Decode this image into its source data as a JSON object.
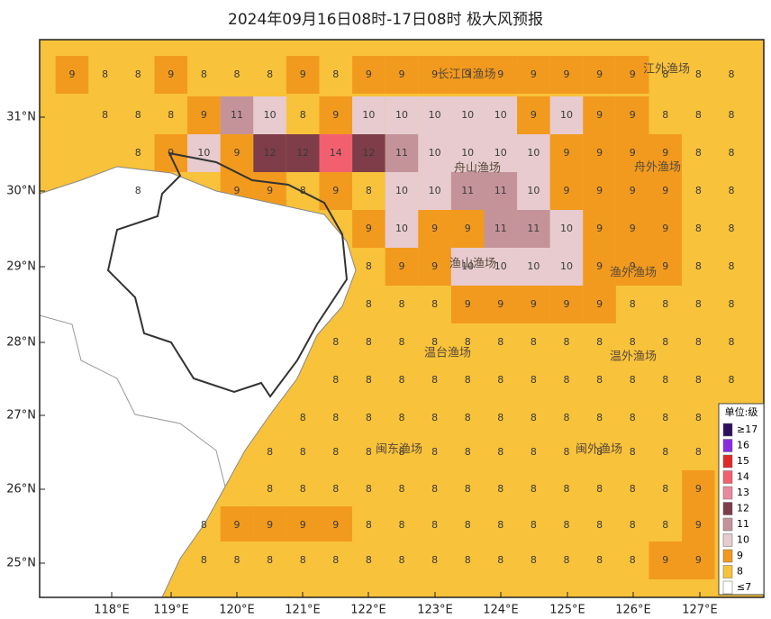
{
  "title": "2024年09月16日08时-17日08时 极大风预报",
  "map": {
    "lat_labels": [
      "31°N",
      "30°N",
      "29°N",
      "28°N",
      "27°N",
      "26°N",
      "25°N"
    ],
    "lon_labels": [
      "118°E",
      "119°E",
      "120°E",
      "121°E",
      "122°E",
      "123°E",
      "124°E",
      "125°E",
      "126°E",
      "127°E"
    ],
    "regions": [
      "长江口渔场",
      "江外渔场",
      "舟山渔场",
      "舟外渔场",
      "渔山渔场",
      "渔外渔场",
      "温台渔场",
      "温外渔场",
      "闽东渔场",
      "闽外渔场"
    ]
  },
  "grid": {
    "rows": [
      [
        9,
        8,
        8,
        9,
        8,
        8,
        8,
        9,
        8,
        9,
        9,
        9,
        9,
        9,
        9,
        9,
        9,
        9,
        8,
        8,
        8
      ],
      [
        null,
        8,
        8,
        8,
        9,
        11,
        10,
        8,
        9,
        10,
        10,
        10,
        10,
        10,
        9,
        10,
        9,
        9,
        8,
        8,
        8
      ],
      [
        null,
        null,
        8,
        9,
        10,
        9,
        12,
        12,
        14,
        12,
        11,
        10,
        10,
        10,
        10,
        9,
        9,
        9,
        9,
        8,
        8
      ],
      [
        null,
        null,
        8,
        null,
        null,
        9,
        9,
        8,
        9,
        8,
        10,
        10,
        11,
        11,
        10,
        9,
        9,
        9,
        9,
        8,
        8
      ],
      [
        null,
        null,
        null,
        null,
        null,
        null,
        null,
        null,
        null,
        9,
        10,
        9,
        9,
        11,
        11,
        10,
        9,
        9,
        9,
        8,
        8
      ],
      [
        null,
        null,
        null,
        null,
        null,
        null,
        null,
        null,
        null,
        8,
        9,
        9,
        10,
        10,
        10,
        10,
        9,
        9,
        9,
        8,
        8
      ],
      [
        null,
        null,
        null,
        null,
        null,
        null,
        null,
        null,
        null,
        8,
        8,
        8,
        9,
        9,
        9,
        9,
        9,
        8,
        8,
        8,
        8
      ],
      [
        null,
        null,
        null,
        null,
        null,
        null,
        null,
        null,
        8,
        8,
        8,
        8,
        8,
        8,
        8,
        8,
        8,
        8,
        8,
        8,
        8
      ],
      [
        null,
        null,
        null,
        null,
        null,
        null,
        null,
        null,
        8,
        8,
        8,
        8,
        8,
        8,
        8,
        8,
        8,
        8,
        8,
        8,
        8
      ],
      [
        null,
        null,
        null,
        null,
        null,
        null,
        null,
        8,
        8,
        8,
        8,
        8,
        8,
        8,
        8,
        8,
        8,
        8,
        8,
        8,
        8
      ],
      [
        null,
        null,
        null,
        null,
        null,
        null,
        8,
        8,
        8,
        8,
        8,
        8,
        8,
        8,
        8,
        8,
        8,
        8,
        8,
        8,
        8
      ],
      [
        null,
        null,
        null,
        null,
        null,
        null,
        8,
        8,
        8,
        8,
        8,
        8,
        8,
        8,
        8,
        8,
        8,
        8,
        8,
        9,
        8
      ],
      [
        null,
        null,
        null,
        null,
        8,
        9,
        9,
        9,
        9,
        8,
        8,
        8,
        8,
        8,
        8,
        8,
        8,
        8,
        8,
        9,
        8
      ],
      [
        null,
        null,
        null,
        null,
        8,
        8,
        8,
        8,
        8,
        8,
        8,
        8,
        8,
        8,
        8,
        8,
        8,
        8,
        9,
        9,
        8
      ]
    ]
  },
  "legend": {
    "title": "单位:级",
    "items": [
      {
        "label": "≥17",
        "color": "#2e0f5e"
      },
      {
        "label": "16",
        "color": "#8a2be2"
      },
      {
        "label": "15",
        "color": "#e02828"
      },
      {
        "label": "14",
        "color": "#f26070"
      },
      {
        "label": "13",
        "color": "#e98a9c"
      },
      {
        "label": "12",
        "color": "#7e3d48"
      },
      {
        "label": "11",
        "color": "#c4939a"
      },
      {
        "label": "10",
        "color": "#e7cbcf"
      },
      {
        "label": "9",
        "color": "#f29a1e"
      },
      {
        "label": "8",
        "color": "#f8c23a"
      },
      {
        "label": "≤7",
        "color": "#ffffff"
      }
    ]
  }
}
